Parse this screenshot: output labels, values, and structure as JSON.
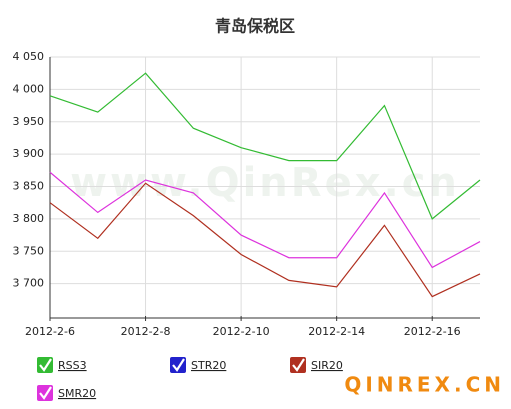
{
  "chart_data": {
    "type": "line",
    "title": "青岛保税区",
    "watermark": "www.QinRex.cn",
    "brand": "QINREX.CN",
    "categories": [
      "2012-2-6",
      null,
      "2012-2-8",
      null,
      "2012-2-10",
      null,
      "2012-2-14",
      null,
      "2012-2-16",
      null
    ],
    "series": [
      {
        "name": "RSS3",
        "color": "#33bb33",
        "values": [
          3990,
          3965,
          4025,
          3940,
          3910,
          3890,
          3890,
          3975,
          3800,
          3860
        ]
      },
      {
        "name": "STR20",
        "color": "#2222cc",
        "values": [
          null,
          null,
          null,
          null,
          null,
          null,
          null,
          null,
          null,
          null
        ]
      },
      {
        "name": "SIR20",
        "color": "#b03020",
        "values": [
          3825,
          3770,
          3855,
          3805,
          3745,
          3705,
          3695,
          3790,
          3680,
          3715
        ]
      },
      {
        "name": "SMR20",
        "color": "#dd33dd",
        "values": [
          3872,
          3810,
          3860,
          3840,
          3775,
          3740,
          3740,
          3840,
          3725,
          3765
        ]
      }
    ],
    "ylim": [
      3650,
      4050
    ],
    "yticks": [
      {
        "value": 3700,
        "label": "3 700"
      },
      {
        "value": 3750,
        "label": "3 750"
      },
      {
        "value": 3800,
        "label": "3 800"
      },
      {
        "value": 3850,
        "label": "3 850"
      },
      {
        "value": 3900,
        "label": "3 900"
      },
      {
        "value": 3950,
        "label": "3 950"
      },
      {
        "value": 4000,
        "label": "4 000"
      },
      {
        "value": 4050,
        "label": "4 050"
      }
    ],
    "grid": true
  }
}
